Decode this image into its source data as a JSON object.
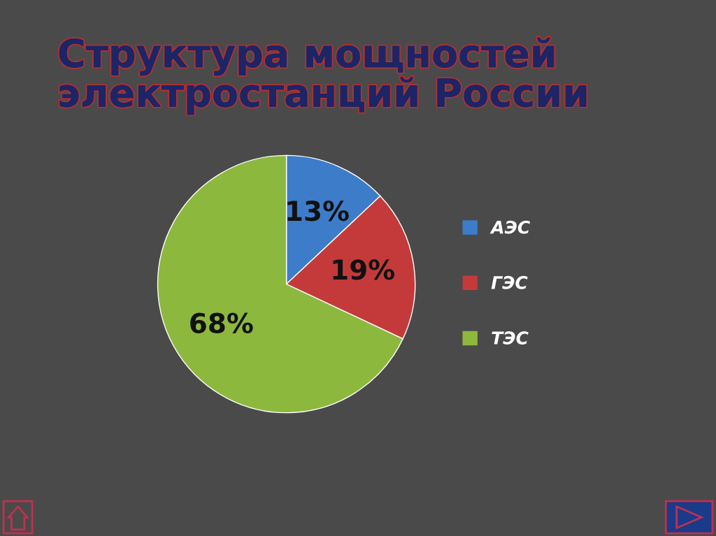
{
  "chart_data": {
    "type": "pie",
    "title": "Структура мощностей\nэлектростанций России",
    "categories": [
      "АЭС",
      "ГЭС",
      "ТЭС"
    ],
    "values": [
      13,
      19,
      68
    ],
    "value_labels": [
      "13%",
      "19%",
      "68%"
    ],
    "colors": [
      "#3d7cc9",
      "#c43a3a",
      "#8db83e"
    ],
    "legend": "right"
  }
}
